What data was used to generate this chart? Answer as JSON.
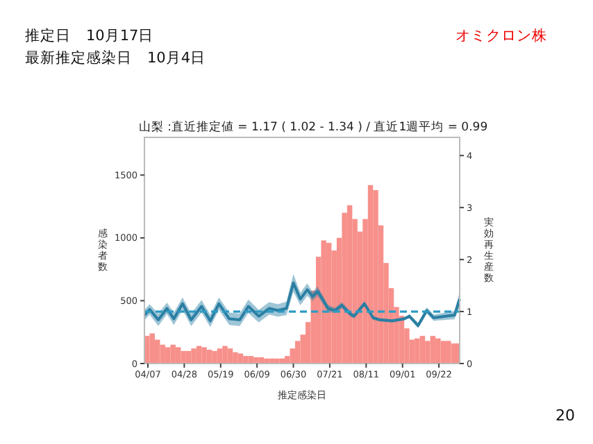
{
  "chart_data": {
    "type": "bar",
    "title": "山梨 :直近推定値 = 1.17 ( 1.02 - 1.34 ) / 直近1週平均 = 0.99",
    "xlabel": "推定感染日",
    "ylabel": "感染者数",
    "y2label": "実効再生産数",
    "annotations": [
      "推定日　10月17日",
      "最新推定感染日　10月4日",
      "オミクロン株",
      "20"
    ],
    "xlim": [
      "--04-05",
      "--10-04"
    ],
    "xticks": [
      {
        "value": "--04-07",
        "label": "04/07"
      },
      {
        "value": "--04-28",
        "label": "04/28"
      },
      {
        "value": "--05-19",
        "label": "05/19"
      },
      {
        "value": "--06-09",
        "label": "06/09"
      },
      {
        "value": "--06-30",
        "label": "06/30"
      },
      {
        "value": "--07-21",
        "label": "07/21"
      },
      {
        "value": "--08-11",
        "label": "08/11"
      },
      {
        "value": "--09-01",
        "label": "09/01"
      },
      {
        "value": "--09-22",
        "label": "09/22"
      }
    ],
    "ylim": [
      0,
      1800
    ],
    "yticks": [
      0,
      500,
      1000,
      1500
    ],
    "y2lim": [
      0,
      4.35
    ],
    "y2ticks": [
      0,
      1,
      2,
      3,
      4
    ],
    "grid": false,
    "ref_lines": [
      {
        "axis": "y2",
        "value": 1,
        "color": "#2e9bc4",
        "line_style": "dashed"
      }
    ],
    "series": [
      {
        "color": "#f7908b",
        "x": [
          "--04-05",
          "--04-08",
          "--04-11",
          "--04-14",
          "--04-17",
          "--04-20",
          "--04-23",
          "--04-26",
          "--04-29",
          "--05-02",
          "--05-05",
          "--05-08",
          "--05-11",
          "--05-14",
          "--05-17",
          "--05-20",
          "--05-23",
          "--05-26",
          "--05-29",
          "--06-01",
          "--06-04",
          "--06-07",
          "--06-10",
          "--06-13",
          "--06-16",
          "--06-19",
          "--06-22",
          "--06-25",
          "--06-28",
          "--07-01",
          "--07-04",
          "--07-07",
          "--07-10",
          "--07-13",
          "--07-16",
          "--07-19",
          "--07-22",
          "--07-25",
          "--07-28",
          "--07-31",
          "--08-03",
          "--08-06",
          "--08-09",
          "--08-12",
          "--08-15",
          "--08-18",
          "--08-21",
          "--08-24",
          "--08-27",
          "--08-30",
          "--09-02",
          "--09-05",
          "--09-08",
          "--09-11",
          "--09-14",
          "--09-17",
          "--09-20",
          "--09-23",
          "--09-26",
          "--09-29",
          "--10-02"
        ],
        "values": [
          220,
          240,
          190,
          150,
          130,
          150,
          130,
          100,
          100,
          120,
          140,
          130,
          110,
          100,
          120,
          140,
          120,
          90,
          80,
          60,
          60,
          50,
          50,
          40,
          40,
          40,
          40,
          60,
          120,
          180,
          230,
          330,
          580,
          850,
          980,
          960,
          900,
          1000,
          1200,
          1260,
          1150,
          1050,
          1150,
          1420,
          1380,
          1100,
          800,
          600,
          450,
          380,
          280,
          190,
          200,
          220,
          180,
          220,
          200,
          180,
          180,
          160,
          160
        ]
      },
      {
        "type": "line",
        "axis": "y2",
        "color": "#2a7fa3",
        "x": [
          "--04-05",
          "--04-08",
          "--04-13",
          "--04-18",
          "--04-22",
          "--04-27",
          "--05-02",
          "--05-08",
          "--05-13",
          "--05-18",
          "--05-24",
          "--05-30",
          "--06-04",
          "--06-10",
          "--06-16",
          "--06-21",
          "--06-26",
          "--06-30",
          "--07-04",
          "--07-08",
          "--07-11",
          "--07-14",
          "--07-20",
          "--07-24",
          "--07-28",
          "--08-02",
          "--08-04",
          "--08-10",
          "--08-15",
          "--08-19",
          "--08-26",
          "--09-02",
          "--09-05",
          "--09-10",
          "--09-15",
          "--09-19",
          "--09-26",
          "--10-01",
          "--10-04"
        ],
        "values": [
          0.93,
          1.04,
          0.84,
          1.06,
          0.86,
          1.15,
          0.84,
          1.1,
          0.82,
          1.15,
          0.86,
          0.84,
          1.1,
          0.91,
          1.06,
          1.02,
          1.06,
          1.55,
          1.24,
          1.42,
          1.29,
          1.39,
          1.06,
          1.02,
          1.12,
          0.95,
          0.91,
          1.15,
          0.88,
          0.84,
          0.82,
          0.86,
          0.91,
          0.73,
          1.02,
          0.88,
          0.91,
          0.93,
          1.24
        ],
        "lower": [
          0.83,
          0.94,
          0.72,
          0.95,
          0.74,
          1.03,
          0.72,
          0.98,
          0.7,
          1.03,
          0.74,
          0.72,
          0.97,
          0.79,
          0.94,
          0.9,
          0.93,
          1.38,
          1.12,
          1.3,
          1.2,
          1.3,
          0.99,
          0.97,
          1.06,
          0.9,
          0.87,
          1.1,
          0.84,
          0.81,
          0.79,
          0.83,
          0.87,
          0.68,
          0.96,
          0.82,
          0.84,
          0.85,
          1.1
        ],
        "upper": [
          1.03,
          1.14,
          0.96,
          1.17,
          0.98,
          1.27,
          0.96,
          1.22,
          0.94,
          1.27,
          0.98,
          0.96,
          1.23,
          1.03,
          1.18,
          1.14,
          1.19,
          1.72,
          1.36,
          1.54,
          1.38,
          1.48,
          1.13,
          1.07,
          1.18,
          1.0,
          0.95,
          1.2,
          0.92,
          0.87,
          0.85,
          0.89,
          0.95,
          0.78,
          1.08,
          0.94,
          0.98,
          1.01,
          1.38
        ]
      }
    ]
  }
}
